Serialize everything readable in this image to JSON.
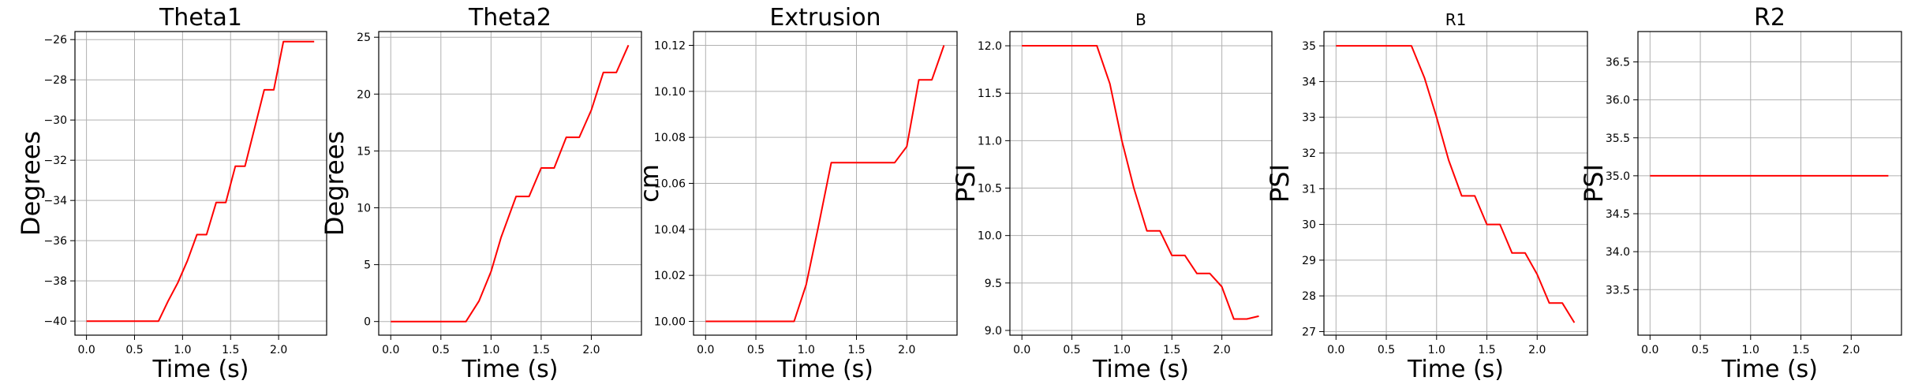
{
  "chart_data": [
    {
      "type": "line",
      "title": "Theta1",
      "xlabel": "Time (s)",
      "ylabel": "Degrees",
      "xlim": [
        -0.12,
        2.5
      ],
      "ylim": [
        -40.7,
        -25.6
      ],
      "xticks": [
        0.0,
        0.5,
        1.0,
        1.5,
        2.0
      ],
      "xtick_labels": [
        "0.0",
        "0.5",
        "1.0",
        "1.5",
        "2.0"
      ],
      "yticks": [
        -40,
        -38,
        -36,
        -34,
        -32,
        -30,
        -28,
        -26
      ],
      "ytick_labels": [
        "−40",
        "−38",
        "−36",
        "−34",
        "−32",
        "−30",
        "−28",
        "−26"
      ],
      "grid": true,
      "line_color": "#ff0000",
      "x": [
        0.0,
        0.1,
        0.2,
        0.3,
        0.4,
        0.5,
        0.6,
        0.75,
        0.85,
        0.95,
        1.05,
        1.15,
        1.25,
        1.35,
        1.45,
        1.55,
        1.65,
        1.75,
        1.85,
        1.95,
        2.05,
        2.15,
        2.27,
        2.37
      ],
      "y": [
        -40.0,
        -40.0,
        -40.0,
        -40.0,
        -40.0,
        -40.0,
        -40.0,
        -40.0,
        -39.0,
        -38.1,
        -37.0,
        -35.7,
        -35.7,
        -34.1,
        -34.1,
        -32.3,
        -32.3,
        -30.4,
        -28.5,
        -28.5,
        -26.1,
        -26.1,
        -26.1,
        -26.1
      ]
    },
    {
      "type": "line",
      "title": "Theta2",
      "xlabel": "Time (s)",
      "ylabel": "Degrees",
      "xlim": [
        -0.12,
        2.5
      ],
      "ylim": [
        -1.2,
        25.5
      ],
      "xticks": [
        0.0,
        0.5,
        1.0,
        1.5,
        2.0
      ],
      "xtick_labels": [
        "0.0",
        "0.5",
        "1.0",
        "1.5",
        "2.0"
      ],
      "yticks": [
        0,
        5,
        10,
        15,
        20,
        25
      ],
      "ytick_labels": [
        "0",
        "5",
        "10",
        "15",
        "20",
        "25"
      ],
      "grid": true,
      "line_color": "#ff0000",
      "x": [
        0.0,
        0.75,
        0.88,
        1.0,
        1.1,
        1.25,
        1.38,
        1.5,
        1.63,
        1.75,
        1.88,
        2.0,
        2.12,
        2.25,
        2.37
      ],
      "y": [
        0.0,
        0.0,
        1.8,
        4.4,
        7.4,
        11.0,
        11.0,
        13.5,
        13.5,
        16.2,
        16.2,
        18.6,
        21.9,
        21.9,
        24.3
      ]
    },
    {
      "type": "line",
      "title": "Extrusion",
      "xlabel": "Time (s)",
      "ylabel": "cm",
      "xlim": [
        -0.12,
        2.5
      ],
      "ylim": [
        9.994,
        10.126
      ],
      "xticks": [
        0.0,
        0.5,
        1.0,
        1.5,
        2.0
      ],
      "xtick_labels": [
        "0.0",
        "0.5",
        "1.0",
        "1.5",
        "2.0"
      ],
      "yticks": [
        10.0,
        10.02,
        10.04,
        10.06,
        10.08,
        10.1,
        10.12
      ],
      "ytick_labels": [
        "10.00",
        "10.02",
        "10.04",
        "10.06",
        "10.08",
        "10.10",
        "10.12"
      ],
      "grid": true,
      "line_color": "#ff0000",
      "x": [
        0.0,
        0.88,
        1.0,
        1.12,
        1.25,
        1.88,
        2.0,
        2.12,
        2.25,
        2.37
      ],
      "y": [
        10.0,
        10.0,
        10.016,
        10.041,
        10.069,
        10.069,
        10.076,
        10.105,
        10.105,
        10.12
      ]
    },
    {
      "type": "line",
      "title": "B",
      "xlabel": "Time (s)",
      "ylabel": "PSI",
      "xlim": [
        -0.12,
        2.5
      ],
      "ylim": [
        8.95,
        12.15
      ],
      "xticks": [
        0.0,
        0.5,
        1.0,
        1.5,
        2.0
      ],
      "xtick_labels": [
        "0.0",
        "0.5",
        "1.0",
        "1.5",
        "2.0"
      ],
      "yticks": [
        9.0,
        9.5,
        10.0,
        10.5,
        11.0,
        11.5,
        12.0
      ],
      "ytick_labels": [
        "9.0",
        "9.5",
        "10.0",
        "10.5",
        "11.0",
        "11.5",
        "12.0"
      ],
      "grid": true,
      "line_color": "#ff0000",
      "x": [
        0.0,
        0.75,
        0.88,
        1.0,
        1.12,
        1.25,
        1.38,
        1.5,
        1.63,
        1.75,
        1.88,
        2.0,
        2.12,
        2.25,
        2.37
      ],
      "y": [
        12.0,
        12.0,
        11.6,
        11.0,
        10.5,
        10.05,
        10.05,
        9.79,
        9.79,
        9.6,
        9.6,
        9.46,
        9.12,
        9.12,
        9.15
      ]
    },
    {
      "type": "line",
      "title": "R1",
      "xlabel": "Time (s)",
      "ylabel": "PSI",
      "xlim": [
        -0.12,
        2.5
      ],
      "ylim": [
        26.9,
        35.4
      ],
      "xticks": [
        0.0,
        0.5,
        1.0,
        1.5,
        2.0
      ],
      "xtick_labels": [
        "0.0",
        "0.5",
        "1.0",
        "1.5",
        "2.0"
      ],
      "yticks": [
        27,
        28,
        29,
        30,
        31,
        32,
        33,
        34,
        35
      ],
      "ytick_labels": [
        "27",
        "28",
        "29",
        "30",
        "31",
        "32",
        "33",
        "34",
        "35"
      ],
      "grid": true,
      "line_color": "#ff0000",
      "x": [
        0.0,
        0.75,
        0.88,
        1.0,
        1.12,
        1.25,
        1.38,
        1.5,
        1.63,
        1.75,
        1.88,
        2.0,
        2.12,
        2.25,
        2.37
      ],
      "y": [
        35.0,
        35.0,
        34.1,
        33.0,
        31.8,
        30.8,
        30.8,
        30.0,
        30.0,
        29.2,
        29.2,
        28.6,
        27.8,
        27.8,
        27.25
      ]
    },
    {
      "type": "line",
      "title": "R2",
      "xlabel": "Time (s)",
      "ylabel": "PSI",
      "xlim": [
        -0.12,
        2.5
      ],
      "ylim": [
        32.9,
        36.9
      ],
      "xticks": [
        0.0,
        0.5,
        1.0,
        1.5,
        2.0
      ],
      "xtick_labels": [
        "0.0",
        "0.5",
        "1.0",
        "1.5",
        "2.0"
      ],
      "yticks": [
        33.5,
        34.0,
        34.5,
        35.0,
        35.5,
        36.0,
        36.5
      ],
      "ytick_labels": [
        "33.5",
        "34.0",
        "34.5",
        "35.0",
        "35.5",
        "36.0",
        "36.5"
      ],
      "grid": true,
      "line_color": "#ff0000",
      "x": [
        0.0,
        2.37
      ],
      "y": [
        35.0,
        35.0
      ]
    }
  ]
}
